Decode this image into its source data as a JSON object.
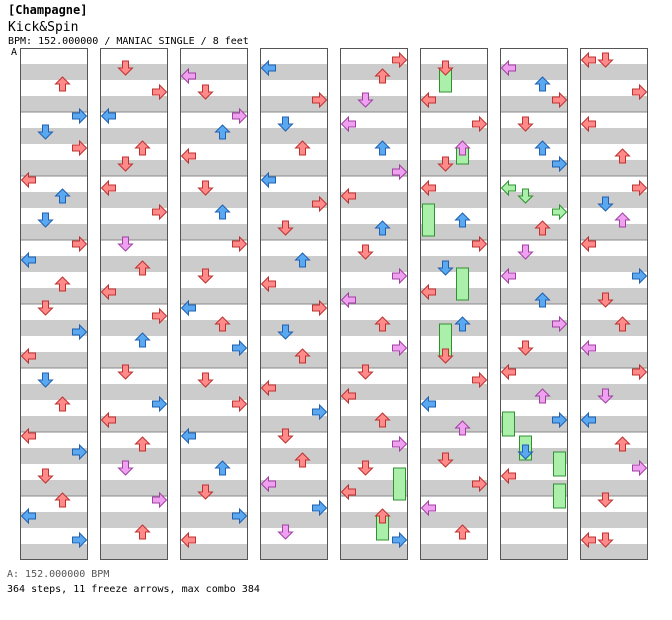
{
  "header": {
    "title": "[Champagne]",
    "song": "Kick&Spin",
    "info": "BPM: 152.000000 / MANIAC SINGLE / 8 feet"
  },
  "section_marker": "A",
  "footer": {
    "bpm_line": "A: 152.000000 BPM",
    "stats_line": "364 steps, 11 freeze arrows, max combo 384"
  },
  "colors": {
    "stripe_gray": "#cccccc",
    "quarter_red": "#ff8a8a",
    "eighth_blue": "#5aa8f0",
    "sixteenth_pink": "#f0a0f0",
    "freeze_green": "#aaf0aa",
    "lane_border": "#555555"
  },
  "chart_data": {
    "type": "step-chart",
    "columns": 8,
    "measures_per_column": 8,
    "lanes": [
      "left",
      "down",
      "up",
      "right"
    ],
    "notes": [
      [
        0,
        4,
        2,
        "r"
      ],
      [
        0,
        8,
        3,
        "b"
      ],
      [
        0,
        10,
        1,
        "b"
      ],
      [
        0,
        12,
        3,
        "r"
      ],
      [
        0,
        16,
        0,
        "r"
      ],
      [
        0,
        18,
        2,
        "b"
      ],
      [
        0,
        21,
        1,
        "b"
      ],
      [
        0,
        24,
        3,
        "r"
      ],
      [
        0,
        26,
        0,
        "b"
      ],
      [
        0,
        29,
        2,
        "r"
      ],
      [
        0,
        32,
        1,
        "r"
      ],
      [
        0,
        35,
        3,
        "b"
      ],
      [
        0,
        38,
        0,
        "r"
      ],
      [
        0,
        41,
        1,
        "b"
      ],
      [
        0,
        44,
        2,
        "r"
      ],
      [
        0,
        48,
        0,
        "r"
      ],
      [
        0,
        50,
        3,
        "b"
      ],
      [
        0,
        53,
        1,
        "r"
      ],
      [
        0,
        56,
        2,
        "r"
      ],
      [
        0,
        58,
        0,
        "b"
      ],
      [
        0,
        61,
        3,
        "b"
      ],
      [
        1,
        2,
        1,
        "r"
      ],
      [
        1,
        5,
        3,
        "r"
      ],
      [
        1,
        8,
        0,
        "b"
      ],
      [
        1,
        12,
        2,
        "r"
      ],
      [
        1,
        14,
        1,
        "r"
      ],
      [
        1,
        17,
        0,
        "r"
      ],
      [
        1,
        20,
        3,
        "r"
      ],
      [
        1,
        24,
        1,
        "p"
      ],
      [
        1,
        27,
        2,
        "r"
      ],
      [
        1,
        30,
        0,
        "r"
      ],
      [
        1,
        33,
        3,
        "r"
      ],
      [
        1,
        36,
        2,
        "b"
      ],
      [
        1,
        40,
        1,
        "r"
      ],
      [
        1,
        44,
        3,
        "b"
      ],
      [
        1,
        46,
        0,
        "r"
      ],
      [
        1,
        49,
        2,
        "r"
      ],
      [
        1,
        52,
        1,
        "p"
      ],
      [
        1,
        56,
        3,
        "p"
      ],
      [
        1,
        60,
        2,
        "r"
      ],
      [
        2,
        3,
        0,
        "p"
      ],
      [
        2,
        5,
        1,
        "r"
      ],
      [
        2,
        8,
        3,
        "p"
      ],
      [
        2,
        10,
        2,
        "b"
      ],
      [
        2,
        13,
        0,
        "r"
      ],
      [
        2,
        17,
        1,
        "r"
      ],
      [
        2,
        20,
        2,
        "b"
      ],
      [
        2,
        24,
        3,
        "r"
      ],
      [
        2,
        28,
        1,
        "r"
      ],
      [
        2,
        32,
        0,
        "b"
      ],
      [
        2,
        34,
        2,
        "r"
      ],
      [
        2,
        37,
        3,
        "b"
      ],
      [
        2,
        41,
        1,
        "r"
      ],
      [
        2,
        44,
        3,
        "r"
      ],
      [
        2,
        48,
        0,
        "b"
      ],
      [
        2,
        52,
        2,
        "b"
      ],
      [
        2,
        55,
        1,
        "r"
      ],
      [
        2,
        58,
        3,
        "b"
      ],
      [
        2,
        61,
        0,
        "r"
      ],
      [
        3,
        2,
        0,
        "b"
      ],
      [
        3,
        6,
        3,
        "r"
      ],
      [
        3,
        9,
        1,
        "b"
      ],
      [
        3,
        12,
        2,
        "r"
      ],
      [
        3,
        16,
        0,
        "b"
      ],
      [
        3,
        19,
        3,
        "r"
      ],
      [
        3,
        22,
        1,
        "r"
      ],
      [
        3,
        26,
        2,
        "b"
      ],
      [
        3,
        29,
        0,
        "r"
      ],
      [
        3,
        32,
        3,
        "r"
      ],
      [
        3,
        35,
        1,
        "b"
      ],
      [
        3,
        38,
        2,
        "r"
      ],
      [
        3,
        42,
        0,
        "r"
      ],
      [
        3,
        45,
        3,
        "b"
      ],
      [
        3,
        48,
        1,
        "r"
      ],
      [
        3,
        51,
        2,
        "r"
      ],
      [
        3,
        54,
        0,
        "p"
      ],
      [
        3,
        57,
        3,
        "b"
      ],
      [
        3,
        60,
        1,
        "p"
      ],
      [
        4,
        1,
        3,
        "r"
      ],
      [
        4,
        3,
        2,
        "r"
      ],
      [
        4,
        6,
        1,
        "p"
      ],
      [
        4,
        9,
        0,
        "p"
      ],
      [
        4,
        12,
        2,
        "b"
      ],
      [
        4,
        15,
        3,
        "p"
      ],
      [
        4,
        18,
        0,
        "r"
      ],
      [
        4,
        22,
        2,
        "b"
      ],
      [
        4,
        25,
        1,
        "r"
      ],
      [
        4,
        28,
        3,
        "p"
      ],
      [
        4,
        31,
        0,
        "p"
      ],
      [
        4,
        34,
        2,
        "r"
      ],
      [
        4,
        37,
        3,
        "p"
      ],
      [
        4,
        40,
        1,
        "r"
      ],
      [
        4,
        43,
        0,
        "r"
      ],
      [
        4,
        46,
        2,
        "r"
      ],
      [
        4,
        49,
        3,
        "p"
      ],
      [
        4,
        52,
        1,
        "r"
      ],
      [
        4,
        55,
        0,
        "r"
      ],
      [
        4,
        58,
        2,
        "r"
      ],
      [
        4,
        61,
        3,
        "b"
      ],
      [
        5,
        2,
        1,
        "r"
      ],
      [
        5,
        6,
        0,
        "r"
      ],
      [
        5,
        9,
        3,
        "r"
      ],
      [
        5,
        12,
        2,
        "p"
      ],
      [
        5,
        14,
        1,
        "r"
      ],
      [
        5,
        17,
        0,
        "r"
      ],
      [
        5,
        21,
        2,
        "b"
      ],
      [
        5,
        24,
        3,
        "r"
      ],
      [
        5,
        27,
        1,
        "b"
      ],
      [
        5,
        30,
        0,
        "r"
      ],
      [
        5,
        34,
        2,
        "b"
      ],
      [
        5,
        38,
        1,
        "r"
      ],
      [
        5,
        41,
        3,
        "r"
      ],
      [
        5,
        44,
        0,
        "b"
      ],
      [
        5,
        47,
        2,
        "p"
      ],
      [
        5,
        51,
        1,
        "r"
      ],
      [
        5,
        54,
        3,
        "r"
      ],
      [
        5,
        57,
        0,
        "p"
      ],
      [
        5,
        60,
        2,
        "r"
      ],
      [
        6,
        2,
        0,
        "p"
      ],
      [
        6,
        4,
        2,
        "b"
      ],
      [
        6,
        6,
        3,
        "r"
      ],
      [
        6,
        9,
        1,
        "r"
      ],
      [
        6,
        12,
        2,
        "b"
      ],
      [
        6,
        14,
        3,
        "b"
      ],
      [
        6,
        17,
        0,
        "g"
      ],
      [
        6,
        18,
        1,
        "g"
      ],
      [
        6,
        20,
        3,
        "g"
      ],
      [
        6,
        22,
        2,
        "r"
      ],
      [
        6,
        25,
        1,
        "p"
      ],
      [
        6,
        28,
        0,
        "p"
      ],
      [
        6,
        31,
        2,
        "b"
      ],
      [
        6,
        34,
        3,
        "p"
      ],
      [
        6,
        37,
        1,
        "r"
      ],
      [
        6,
        40,
        0,
        "r"
      ],
      [
        6,
        43,
        2,
        "p"
      ],
      [
        6,
        46,
        3,
        "b"
      ],
      [
        6,
        50,
        1,
        "b"
      ],
      [
        6,
        53,
        0,
        "r"
      ],
      [
        7,
        1,
        0,
        "r"
      ],
      [
        7,
        1,
        1,
        "r"
      ],
      [
        7,
        5,
        3,
        "r"
      ],
      [
        7,
        9,
        0,
        "r"
      ],
      [
        7,
        13,
        2,
        "r"
      ],
      [
        7,
        17,
        3,
        "r"
      ],
      [
        7,
        19,
        1,
        "b"
      ],
      [
        7,
        21,
        2,
        "p"
      ],
      [
        7,
        24,
        0,
        "r"
      ],
      [
        7,
        28,
        3,
        "b"
      ],
      [
        7,
        31,
        1,
        "r"
      ],
      [
        7,
        34,
        2,
        "r"
      ],
      [
        7,
        37,
        0,
        "p"
      ],
      [
        7,
        40,
        3,
        "r"
      ],
      [
        7,
        43,
        1,
        "p"
      ],
      [
        7,
        46,
        0,
        "b"
      ],
      [
        7,
        49,
        2,
        "r"
      ],
      [
        7,
        52,
        3,
        "p"
      ],
      [
        7,
        56,
        1,
        "r"
      ],
      [
        7,
        61,
        0,
        "r"
      ],
      [
        7,
        61,
        1,
        "r"
      ]
    ],
    "freezes": [
      [
        5,
        2,
        5,
        1,
        "g"
      ],
      [
        5,
        12,
        14,
        2,
        "g"
      ],
      [
        5,
        19,
        23,
        0,
        "g"
      ],
      [
        5,
        27,
        31,
        2,
        "g"
      ],
      [
        5,
        34,
        38,
        1,
        "g"
      ],
      [
        6,
        45,
        48,
        0,
        "g"
      ],
      [
        6,
        48,
        51,
        1,
        "g"
      ],
      [
        6,
        50,
        53,
        3,
        "g"
      ],
      [
        6,
        54,
        57,
        3,
        "g"
      ],
      [
        4,
        52,
        56,
        3,
        "g"
      ],
      [
        4,
        58,
        61,
        2,
        "g"
      ]
    ]
  }
}
